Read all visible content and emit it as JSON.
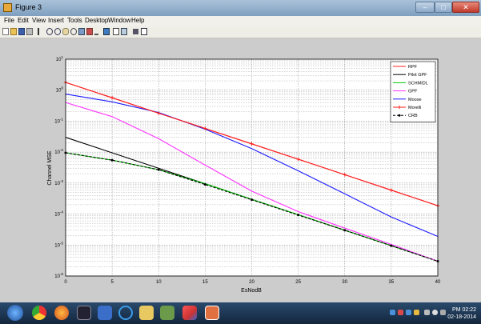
{
  "window": {
    "title": "Figure 3",
    "minimize": "–",
    "maximize": "□",
    "close": "✕"
  },
  "menu": [
    "File",
    "Edit",
    "View",
    "Insert",
    "Tools",
    "Desktop",
    "Window",
    "Help"
  ],
  "toolbar_icons": [
    "new-figure-icon",
    "open-file-icon",
    "save-icon",
    "print-icon",
    "edit-plot-icon",
    "zoom-in-icon",
    "zoom-out-icon",
    "pan-icon",
    "rotate-icon",
    "data-cursor-icon",
    "brush-icon",
    "link-icon",
    "colorbar-icon",
    "legend-icon",
    "hide-plot-tools-icon",
    "show-plot-tools-icon"
  ],
  "taskbar": {
    "apps": [
      "start-orb-icon",
      "chrome-icon",
      "firefox-icon",
      "calendar-icon",
      "media-icon",
      "ie-icon",
      "explorer-icon",
      "app-icon",
      "matlab-icon",
      "figure-icon"
    ],
    "tray": [
      "tray-icon-1",
      "tray-icon-2",
      "tray-icon-3",
      "tray-icon-4",
      "signal-icon",
      "volume-icon",
      "flag-icon"
    ],
    "time": "PM 02:22",
    "date": "02-18-2014"
  },
  "chart_data": {
    "type": "line",
    "title": "",
    "xlabel": "EsNodB",
    "ylabel": "Channel MSE",
    "xlim": [
      0,
      40
    ],
    "ylim_exp": [
      -6,
      1
    ],
    "yscale": "log",
    "grid": true,
    "x_ticks": [
      "0",
      "5",
      "10",
      "15",
      "20",
      "25",
      "30",
      "35",
      "40"
    ],
    "y_ticks": [
      {
        "base": "10",
        "exp": "1"
      },
      {
        "base": "10",
        "exp": "0"
      },
      {
        "base": "10",
        "exp": "-1"
      },
      {
        "base": "10",
        "exp": "-2"
      },
      {
        "base": "10",
        "exp": "-3"
      },
      {
        "base": "10",
        "exp": "-4"
      },
      {
        "base": "10",
        "exp": "-5"
      },
      {
        "base": "10",
        "exp": "-6"
      }
    ],
    "legend_position": "top-right",
    "x": [
      0,
      5,
      10,
      15,
      20,
      25,
      30,
      35,
      40
    ],
    "series": [
      {
        "name": "RPF",
        "color": "#ff2020",
        "marker": "none",
        "dash": "none",
        "values": [
          1.78,
          0.57,
          0.18,
          0.058,
          0.0185,
          0.0059,
          0.00186,
          0.00059,
          0.000186
        ]
      },
      {
        "name": "Pilot GPF",
        "color": "#000000",
        "marker": "none",
        "dash": "none",
        "values": [
          0.03,
          0.0095,
          0.003,
          0.00095,
          0.0003,
          9.5e-05,
          3e-05,
          9.5e-06,
          3e-06
        ]
      },
      {
        "name": "SCHMIDL",
        "color": "#00cc00",
        "marker": "none",
        "dash": "none",
        "values": [
          0.0095,
          0.0055,
          0.0027,
          0.00095,
          0.0003,
          9.5e-05,
          3e-05,
          9.5e-06,
          3e-06
        ]
      },
      {
        "name": "GPF",
        "color": "#ff33ff",
        "marker": "none",
        "dash": "none",
        "values": [
          0.4,
          0.14,
          0.027,
          0.0038,
          0.00055,
          0.00012,
          3.5e-05,
          1.05e-05,
          3e-06
        ]
      },
      {
        "name": "Moose",
        "color": "#1a1aff",
        "marker": "none",
        "dash": "none",
        "values": [
          0.75,
          0.42,
          0.19,
          0.055,
          0.013,
          0.0025,
          0.00045,
          8e-05,
          1.9e-05
        ]
      },
      {
        "name": "Morelli",
        "color": "#ff2020",
        "marker": "plus",
        "dash": "none",
        "values": [
          1.78,
          0.57,
          0.18,
          0.058,
          0.0185,
          0.0059,
          0.00186,
          0.00059,
          0.000186
        ]
      },
      {
        "name": "CRB",
        "color": "#000000",
        "marker": "dot",
        "dash": "dash",
        "values": [
          0.0095,
          0.0055,
          0.0027,
          0.0009,
          0.00029,
          9.3e-05,
          3e-05,
          9.5e-06,
          3e-06
        ]
      }
    ]
  }
}
